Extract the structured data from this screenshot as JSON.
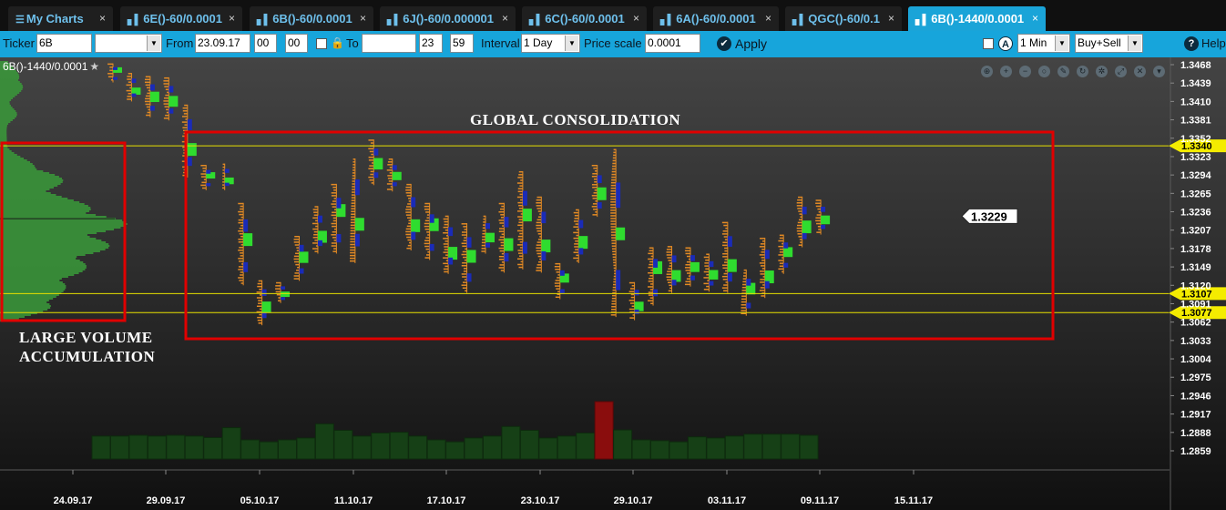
{
  "tabs": [
    {
      "label": "My Charts",
      "icon": "menu-icon",
      "active": false
    },
    {
      "label": "6E()-60/0.0001",
      "icon": "bar-chart-icon",
      "active": false
    },
    {
      "label": "6B()-60/0.0001",
      "icon": "bar-chart-icon",
      "active": false
    },
    {
      "label": "6J()-60/0.000001",
      "icon": "bar-chart-icon",
      "active": false
    },
    {
      "label": "6C()-60/0.0001",
      "icon": "bar-chart-icon",
      "active": false
    },
    {
      "label": "6A()-60/0.0001",
      "icon": "bar-chart-icon",
      "active": false
    },
    {
      "label": "QGC()-60/0.1",
      "icon": "bar-chart-icon",
      "active": false
    },
    {
      "label": "6B()-1440/0.0001",
      "icon": "bar-chart-icon",
      "active": true
    }
  ],
  "tab_close_glyph": "×",
  "toolbar": {
    "ticker_label": "Ticker",
    "ticker_value": "6B",
    "from_label": "From",
    "from_date": "23.09.17",
    "from_hour": "00",
    "from_minute": "00",
    "to_label": "To",
    "to_date": "",
    "to_hour": "23",
    "to_minute": "59",
    "interval_label": "Interval",
    "interval_value": "1 Day",
    "price_scale_label": "Price scale",
    "price_scale_value": "0.0001",
    "apply_label": "Apply",
    "auto_glyph": "A",
    "period_value": "1 Min",
    "side_value": "Buy+Sell",
    "help_label": "Help"
  },
  "chart": {
    "title": "6B()-1440/0.0001",
    "star": "★",
    "annotation_global": "GLOBAL CONSOLIDATION",
    "annotation_volume_line1": "LARGE VOLUME",
    "annotation_volume_line2": "ACCUMULATION",
    "current_price": "1.3229",
    "level_labels": [
      "1.3340",
      "1.3107",
      "1.3077"
    ],
    "price_ticks": [
      "1.3468",
      "1.3439",
      "1.3410",
      "1.3381",
      "1.3352",
      "1.3323",
      "1.3294",
      "1.3265",
      "1.3236",
      "1.3207",
      "1.3178",
      "1.3149",
      "1.3120",
      "1.3091",
      "1.3062",
      "1.3033",
      "1.3004",
      "1.2975",
      "1.2946",
      "1.2917",
      "1.2888",
      "1.2859"
    ],
    "date_ticks": [
      "24.09.17",
      "29.09.17",
      "05.10.17",
      "11.10.17",
      "17.10.17",
      "23.10.17",
      "29.10.17",
      "03.11.17",
      "09.11.17",
      "15.11.17"
    ],
    "tools": [
      "zoom-area-icon",
      "zoom-in-icon",
      "zoom-out-icon",
      "zoom-reset-icon",
      "draw-icon",
      "refresh-icon",
      "settings-icon",
      "fullscreen-icon",
      "close-icon",
      "collapse-icon"
    ],
    "colors": {
      "level_line": "#e8e000",
      "level_label_bg": "#f4ec00",
      "annotation_box": "#e00000",
      "profile_green": "#2fdc2f",
      "profile_orange": "#e38a24",
      "profile_blue": "#1a2bb8",
      "volume_bar": "#164016",
      "volume_spike": "#8a0d0d",
      "left_profile": "#3a9a3a"
    }
  },
  "chart_data": {
    "type": "bar",
    "title": "6B()-1440/0.0001",
    "xlabel": "",
    "ylabel": "",
    "ylim": [
      1.2845,
      1.348
    ],
    "current_price": 1.3229,
    "levels": [
      1.334,
      1.3107,
      1.3077
    ],
    "candles": [
      {
        "date": "25.09.17",
        "high": 1.347,
        "low": 1.344
      },
      {
        "date": "26.09.17",
        "high": 1.3455,
        "low": 1.341
      },
      {
        "date": "27.09.17",
        "high": 1.345,
        "low": 1.3385
      },
      {
        "date": "28.09.17",
        "high": 1.3448,
        "low": 1.338
      },
      {
        "date": "02.10.17",
        "high": 1.3405,
        "low": 1.329
      },
      {
        "date": "03.10.17",
        "high": 1.331,
        "low": 1.327
      },
      {
        "date": "04.10.17",
        "high": 1.3312,
        "low": 1.327
      },
      {
        "date": "05.10.17",
        "high": 1.325,
        "low": 1.312
      },
      {
        "date": "06.10.17",
        "high": 1.3128,
        "low": 1.3057
      },
      {
        "date": "09.10.17",
        "high": 1.3125,
        "low": 1.3092
      },
      {
        "date": "10.10.17",
        "high": 1.3198,
        "low": 1.3127
      },
      {
        "date": "11.10.17",
        "high": 1.3245,
        "low": 1.317
      },
      {
        "date": "12.10.17",
        "high": 1.328,
        "low": 1.317
      },
      {
        "date": "13.10.17",
        "high": 1.332,
        "low": 1.3155
      },
      {
        "date": "16.10.17",
        "high": 1.335,
        "low": 1.3278
      },
      {
        "date": "17.10.17",
        "high": 1.332,
        "low": 1.3268
      },
      {
        "date": "18.10.17",
        "high": 1.328,
        "low": 1.3175
      },
      {
        "date": "19.10.17",
        "high": 1.325,
        "low": 1.316
      },
      {
        "date": "20.10.17",
        "high": 1.323,
        "low": 1.3138
      },
      {
        "date": "23.10.17",
        "high": 1.3218,
        "low": 1.3108
      },
      {
        "date": "24.10.17",
        "high": 1.323,
        "low": 1.317
      },
      {
        "date": "25.10.17",
        "high": 1.325,
        "low": 1.314
      },
      {
        "date": "26.10.17",
        "high": 1.33,
        "low": 1.3145
      },
      {
        "date": "27.10.17",
        "high": 1.326,
        "low": 1.314
      },
      {
        "date": "30.10.17",
        "high": 1.3155,
        "low": 1.3098
      },
      {
        "date": "31.10.17",
        "high": 1.324,
        "low": 1.3155
      },
      {
        "date": "01.11.17",
        "high": 1.331,
        "low": 1.3228
      },
      {
        "date": "02.11.17",
        "high": 1.3335,
        "low": 1.307
      },
      {
        "date": "03.11.17",
        "high": 1.3125,
        "low": 1.3065
      },
      {
        "date": "06.11.17",
        "high": 1.318,
        "low": 1.3088
      },
      {
        "date": "07.11.17",
        "high": 1.3182,
        "low": 1.3108
      },
      {
        "date": "08.11.17",
        "high": 1.318,
        "low": 1.3118
      },
      {
        "date": "09.11.17",
        "high": 1.317,
        "low": 1.311
      },
      {
        "date": "10.11.17",
        "high": 1.322,
        "low": 1.3108
      },
      {
        "date": "13.11.17",
        "high": 1.3145,
        "low": 1.3072
      },
      {
        "date": "14.11.17",
        "high": 1.3195,
        "low": 1.31
      },
      {
        "date": "15.11.17",
        "high": 1.32,
        "low": 1.3138
      },
      {
        "date": "16.11.17",
        "high": 1.326,
        "low": 1.318
      },
      {
        "date": "17.11.17",
        "high": 1.3255,
        "low": 1.32
      }
    ],
    "volume_relative": [
      0.6,
      0.6,
      0.62,
      0.6,
      0.62,
      0.6,
      0.56,
      0.82,
      0.5,
      0.45,
      0.5,
      0.55,
      0.92,
      0.75,
      0.6,
      0.68,
      0.7,
      0.6,
      0.5,
      0.45,
      0.55,
      0.6,
      0.85,
      0.75,
      0.55,
      0.6,
      0.68,
      1.5,
      0.76,
      0.5,
      0.48,
      0.45,
      0.58,
      0.55,
      0.6,
      0.65,
      0.65,
      0.65,
      0.62
    ]
  }
}
